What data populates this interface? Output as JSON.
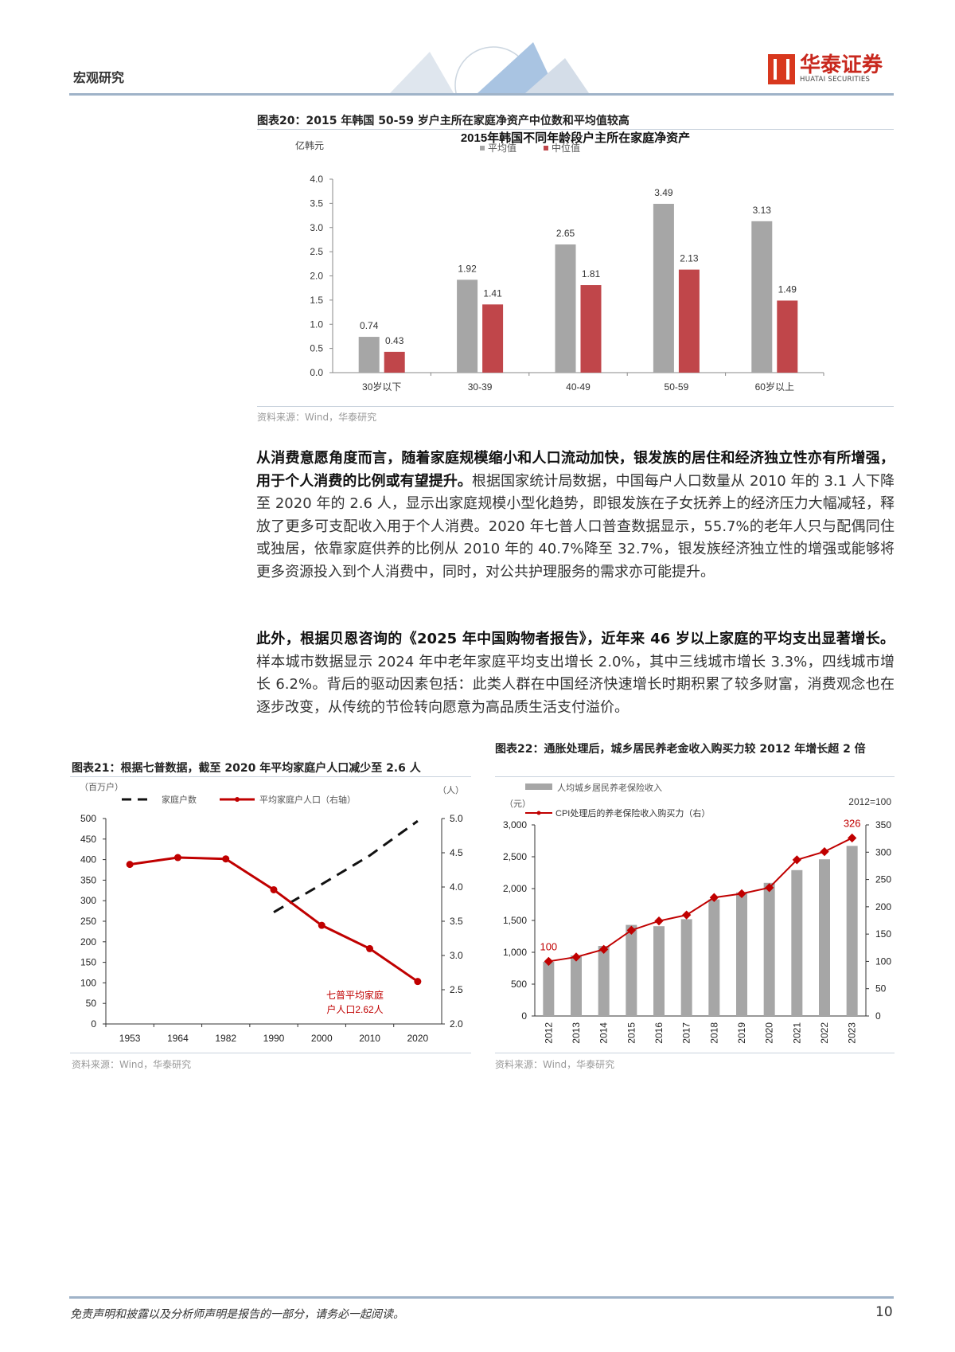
{
  "header": {
    "section": "宏观研究",
    "logo_cn": "华泰证券",
    "logo_en": "HUATAI SECURITIES",
    "brand_color": "#c8281e"
  },
  "fig20": {
    "title": "图表20：2015 年韩国 50-59 岁户主所在家庭净资产中位数和平均值较高",
    "source": "资料来源：Wind，华泰研究",
    "chart_data": {
      "type": "bar",
      "title": "2015年韩国不同年龄段户主所在家庭净资产",
      "ylabel": "亿韩元",
      "ylim": [
        0,
        4.0
      ],
      "yticks": [
        "0.0",
        "0.5",
        "1.0",
        "1.5",
        "2.0",
        "2.5",
        "3.0",
        "3.5",
        "4.0"
      ],
      "categories": [
        "30岁以下",
        "30-39",
        "40-49",
        "50-59",
        "60岁以上"
      ],
      "legend": "top",
      "series": [
        {
          "name": "平均值",
          "color": "#a6a6a6",
          "values": [
            0.74,
            1.92,
            2.65,
            3.49,
            3.13
          ]
        },
        {
          "name": "中位值",
          "color": "#c0464a",
          "values": [
            0.43,
            1.41,
            1.81,
            2.13,
            1.49
          ]
        }
      ]
    }
  },
  "para1": {
    "bold": "从消费意愿角度而言，随着家庭规模缩小和人口流动加快，银发族的居住和经济独立性亦有所增强，用于个人消费的比例或有望提升。",
    "text": "根据国家统计局数据，中国每户人口数量从 2010 年的 3.1 人下降至 2020 年的 2.6 人，显示出家庭规模小型化趋势，即银发族在子女抚养上的经济压力大幅减轻，释放了更多可支配收入用于个人消费。2020 年七普人口普查数据显示，55.7%的老年人只与配偶同住或独居，依靠家庭供养的比例从 2010 年的 40.7%降至 32.7%，银发族经济独立性的增强或能够将更多资源投入到个人消费中，同时，对公共护理服务的需求亦可能提升。"
  },
  "para2": {
    "bold": "此外，根据贝恩咨询的《2025 年中国购物者报告》，近年来 46 岁以上家庭的平均支出显著增长。",
    "text": "样本城市数据显示 2024 年中老年家庭平均支出增长 2.0%，其中三线城市增长 3.3%，四线城市增长 6.2%。背后的驱动因素包括：此类人群在中国经济快速增长时期积累了较多财富，消费观念也在逐步改变，从传统的节俭转向愿意为高品质生活支付溢价。"
  },
  "fig21": {
    "title": "图表21：根据七普数据，截至 2020 年平均家庭户人口减少至 2.6 人",
    "source": "资料来源：Wind，华泰研究",
    "chart_data": {
      "type": "line",
      "categories": [
        "1953",
        "1964",
        "1982",
        "1990",
        "2000",
        "2010",
        "2020"
      ],
      "left_unit": "（百万户）",
      "right_unit": "（人）",
      "ylim_left": [
        0,
        500
      ],
      "yticks_left": [
        "0",
        "50",
        "100",
        "150",
        "200",
        "250",
        "300",
        "350",
        "400",
        "450",
        "500"
      ],
      "ylim_right": [
        2.0,
        5.0
      ],
      "yticks_right": [
        "2.0",
        "2.5",
        "3.0",
        "3.5",
        "4.0",
        "4.5",
        "5.0"
      ],
      "legend": "top",
      "series": [
        {
          "name": "家庭户数",
          "axis": "left",
          "style": "dashed",
          "color": "#111111",
          "values": [
            null,
            null,
            null,
            272,
            340,
            410,
            494
          ]
        },
        {
          "name": "平均家庭户人口（右轴）",
          "axis": "right",
          "color": "#c00000",
          "values": [
            4.33,
            4.43,
            4.41,
            3.96,
            3.44,
            3.1,
            2.62
          ]
        }
      ],
      "annotation": [
        "七普平均家庭",
        "户人口2.62人"
      ]
    }
  },
  "fig22": {
    "title": "图表22：通胀处理后，城乡居民养老金收入购买力较 2012 年增长超 2 倍",
    "source": "资料来源：Wind，华泰研究",
    "chart_data": {
      "type": "bar+line",
      "categories": [
        "2012",
        "2013",
        "2014",
        "2015",
        "2016",
        "2017",
        "2018",
        "2019",
        "2020",
        "2021",
        "2022",
        "2023"
      ],
      "left_unit": "（元）",
      "right_note": "2012=100",
      "ylim_left": [
        0,
        3000
      ],
      "yticks_left": [
        "0",
        "500",
        "1,000",
        "1,500",
        "2,000",
        "2,500",
        "3,000"
      ],
      "ylim_right": [
        0,
        350
      ],
      "yticks_right": [
        "0",
        "50",
        "100",
        "150",
        "200",
        "250",
        "300",
        "350"
      ],
      "legend": "top",
      "series": [
        {
          "name": "人均城乡居民养老保险收入",
          "axis": "left",
          "type": "bar",
          "color": "#a6a6a6",
          "values": [
            850,
            950,
            1100,
            1430,
            1410,
            1520,
            1830,
            1940,
            2090,
            2290,
            2460,
            2670
          ]
        },
        {
          "name": "CPI处理后的养老保险收入购买力（右）",
          "axis": "right",
          "type": "line",
          "color": "#c00000",
          "values": [
            100,
            108,
            122,
            157,
            174,
            185,
            217,
            224,
            235,
            286,
            301,
            326
          ]
        }
      ],
      "data_labels": [
        "100",
        "326"
      ]
    }
  },
  "footer": {
    "disclaimer": "免责声明和披露以及分析师声明是报告的一部分，请务必一起阅读。",
    "page": "10"
  }
}
